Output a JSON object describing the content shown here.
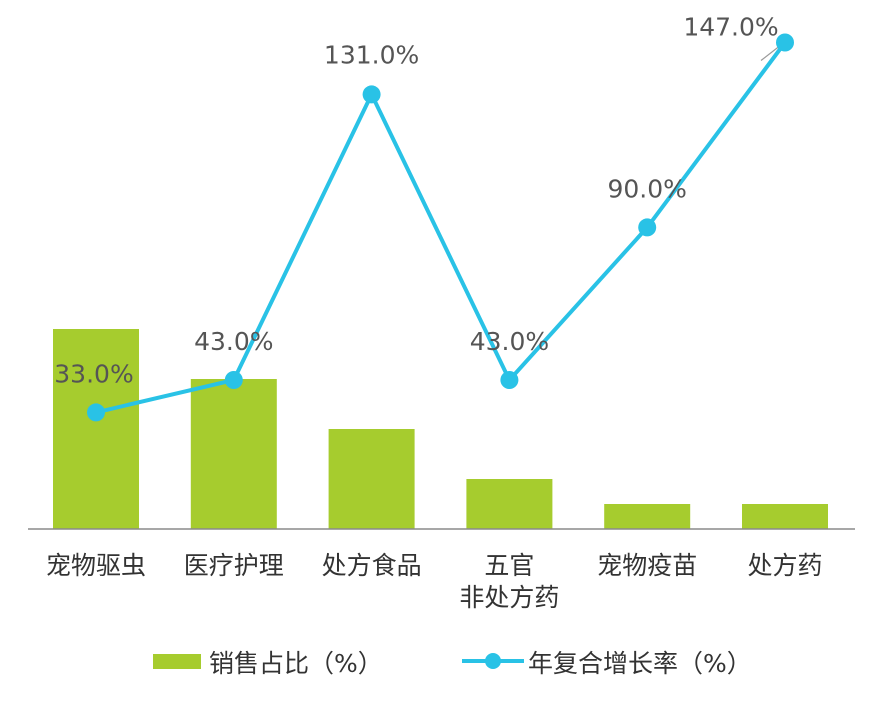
{
  "chart_data": {
    "type": "bar",
    "categories": [
      [
        "宠物驱虫"
      ],
      [
        "医疗护理"
      ],
      [
        "处方食品"
      ],
      [
        "五官",
        "非处方药"
      ],
      [
        "宠物疫苗"
      ],
      [
        "处方药"
      ]
    ],
    "series": [
      {
        "name": "销售占比（%）",
        "type": "bar",
        "values": [
          40,
          30,
          20,
          10,
          5,
          5
        ],
        "color": "#a6cc2e"
      },
      {
        "name": "年复合增长率（%）",
        "type": "line",
        "values": [
          33.0,
          43.0,
          131.0,
          43.0,
          90.0,
          147.0
        ],
        "labels": [
          "33.0%",
          "43.0%",
          "131.0%",
          "43.0%",
          "90.0%",
          "147.0%"
        ],
        "color": "#29c2e6"
      }
    ],
    "legend": [
      "销售占比（%）",
      "年复合增长率（%）"
    ],
    "legend_position": "bottom",
    "grid": false
  }
}
